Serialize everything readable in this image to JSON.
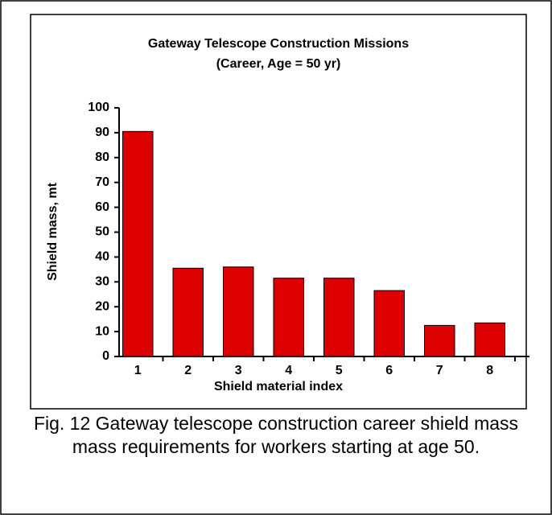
{
  "chart_data": {
    "type": "bar",
    "title": "Gateway Telescope Construction Missions",
    "subtitle": "(Career, Age = 50 yr)",
    "x_label": "Shield material index",
    "y_label": "Shield mass, mt",
    "categories": [
      "1",
      "2",
      "3",
      "4",
      "5",
      "6",
      "7",
      "8"
    ],
    "values": [
      90.5,
      35.5,
      36,
      31.5,
      31.5,
      26.5,
      12.5,
      13.5
    ],
    "color": "#dd0000",
    "ylim": [
      0,
      100
    ],
    "yticks": [
      0,
      10,
      20,
      30,
      40,
      50,
      60,
      70,
      80,
      90,
      100
    ],
    "grid": false
  },
  "caption": "Fig. 12  Gateway telescope construction career shield mass mass requirements for workers starting at age 50."
}
